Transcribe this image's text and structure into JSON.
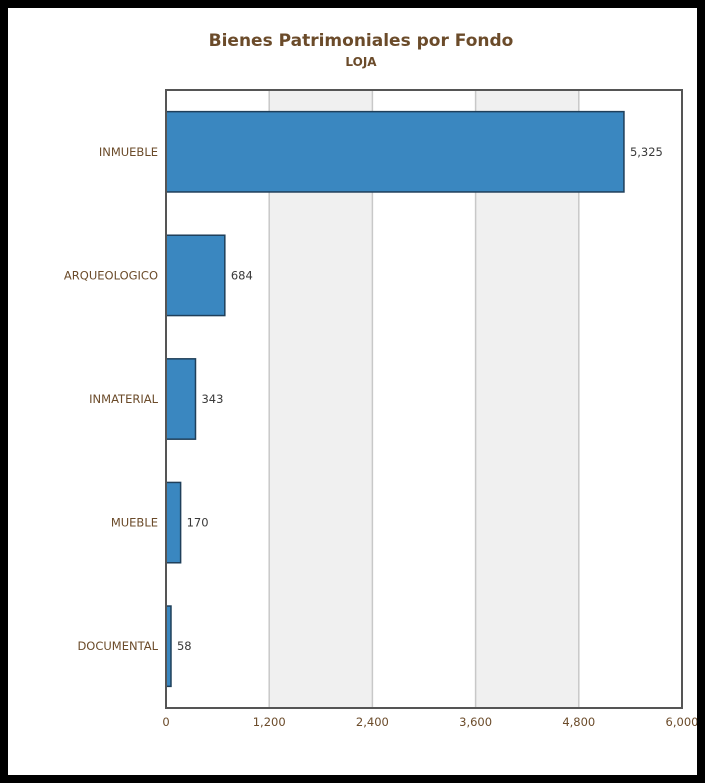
{
  "chart_data": {
    "type": "bar",
    "orientation": "horizontal",
    "title": "Bienes Patrimoniales por Fondo",
    "subtitle": "LOJA",
    "categories": [
      "INMUEBLE",
      "ARQUEOLOGICO",
      "INMATERIAL",
      "MUEBLE",
      "DOCUMENTAL"
    ],
    "values": [
      5325,
      684,
      343,
      170,
      58
    ],
    "data_labels": [
      "5,325",
      "684",
      "343",
      "170",
      "58"
    ],
    "xlim": [
      0,
      6000
    ],
    "xticks": [
      0,
      1200,
      2400,
      3600,
      4800,
      6000
    ],
    "xtick_labels": [
      "0",
      "1,200",
      "2,400",
      "3,600",
      "4,800",
      "6,000"
    ],
    "grid": true,
    "alternate_bands": true,
    "legend": "none",
    "colors": {
      "bar_fill": "#3a87c0",
      "bar_stroke": "#1f3f5a",
      "band": "#f0f0f0",
      "gridline": "#c8c8c8",
      "axis": "#555555",
      "text": "#6b4b2a"
    }
  }
}
